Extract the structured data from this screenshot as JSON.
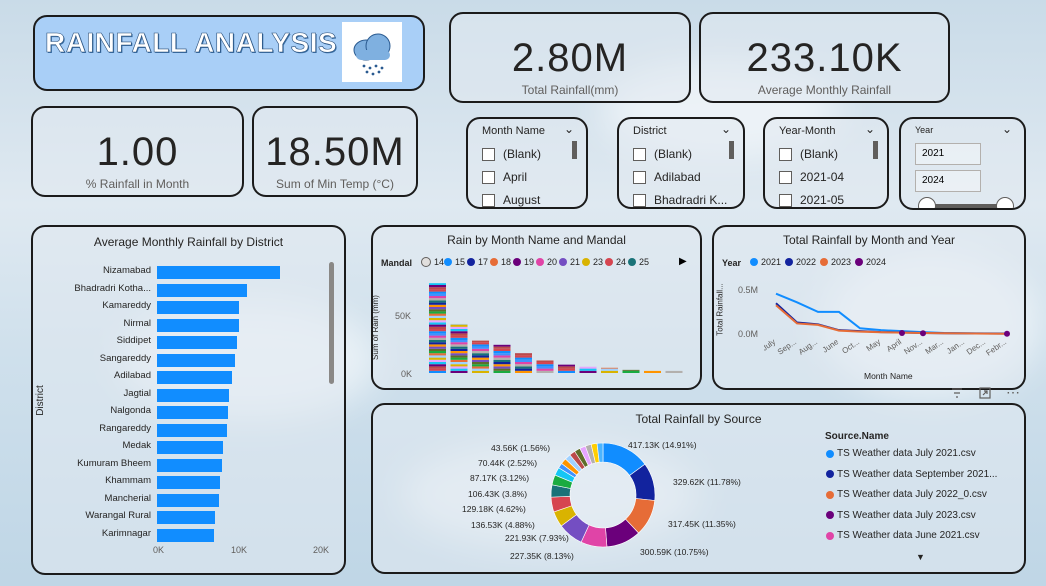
{
  "title": {
    "text": "RAINFALL ANALYSIS",
    "icon": "rain-cloud-icon"
  },
  "kpis": {
    "total_rainfall": {
      "value": "2.80M",
      "label": "Total Rainfall(mm)"
    },
    "avg_monthly": {
      "value": "233.10K",
      "label": "Average Monthly Rainfall"
    },
    "pct_rainfall": {
      "value": "1.00",
      "label": "% Rainfall in Month"
    },
    "min_temp": {
      "value": "18.50M",
      "label": "Sum of Min Temp (°C)"
    }
  },
  "slicers": {
    "month": {
      "title": "Month Name",
      "options": [
        "(Blank)",
        "April",
        "August"
      ]
    },
    "district": {
      "title": "District",
      "options": [
        "(Blank)",
        "Adilabad",
        "Bhadradri K..."
      ]
    },
    "year_month": {
      "title": "Year-Month",
      "options": [
        "(Blank)",
        "2021-04",
        "2021-05"
      ]
    },
    "year": {
      "title": "Year",
      "from": "2021",
      "to": "2024"
    }
  },
  "district_chart": {
    "title": "Average Monthly Rainfall by District",
    "ylabel": "District",
    "ticks": [
      "0K",
      "10K",
      "20K"
    ]
  },
  "mandal_chart": {
    "title": "Rain by Month Name and Mandal",
    "legend_title": "Mandal",
    "legend": [
      "14",
      "15",
      "17",
      "18",
      "19",
      "20",
      "21",
      "23",
      "24",
      "25"
    ],
    "ylabel": "Sum of Rain (mm)",
    "yticks": [
      "50K",
      "0K"
    ]
  },
  "year_chart": {
    "title": "Total Rainfall by Month and Year",
    "legend_title": "Year",
    "legend": [
      "2021",
      "2022",
      "2023",
      "2024"
    ],
    "ylabel": "Total Rainfall...",
    "xlabel": "Month Name",
    "yticks": [
      "0.5M",
      "0.0M"
    ],
    "xticks": [
      "July",
      "Sep...",
      "Aug...",
      "June",
      "Oct...",
      "May",
      "April",
      "Nov...",
      "Mar...",
      "Jan...",
      "Dec...",
      "Febr..."
    ]
  },
  "source_chart": {
    "title": "Total Rainfall by Source",
    "legend_title": "Source.Name",
    "legend": [
      "TS Weather data July 2021.csv",
      "TS Weather data September 2021...",
      "TS Weather data July 2022_0.csv",
      "TS Weather data July 2023.csv",
      "TS Weather data June 2021.csv"
    ],
    "labels": [
      "417.13K (14.91%)",
      "329.62K (11.78%)",
      "317.45K (11.35%)",
      "300.59K (10.75%)",
      "227.35K (8.13%)",
      "221.93K (7.93%)",
      "136.53K (4.88%)",
      "129.18K (4.62%)",
      "106.43K (3.8%)",
      "87.17K (3.12%)",
      "70.44K (2.52%)",
      "43.56K (1.56%)"
    ]
  },
  "colors": {
    "accent": "#118dff",
    "title_bg": "#a9cff7",
    "border": "#1b1b1b"
  },
  "chart_data": [
    {
      "type": "bar",
      "title": "Average Monthly Rainfall by District",
      "ylabel": "District",
      "categories": [
        "Nizamabad",
        "Bhadradri Kotha...",
        "Kamareddy",
        "Nirmal",
        "Siddipet",
        "Sangareddy",
        "Adilabad",
        "Jagtial",
        "Nalgonda",
        "Rangareddy",
        "Medak",
        "Kumuram Bheem",
        "Khammam",
        "Mancherial",
        "Warangal Rural",
        "Karimnagar"
      ],
      "values": [
        15000,
        11000,
        10000,
        10000,
        9700,
        9500,
        9200,
        8800,
        8600,
        8500,
        8000,
        7900,
        7700,
        7500,
        7100,
        6900
      ],
      "xlim": [
        0,
        20000
      ]
    },
    {
      "type": "line",
      "title": "Total Rainfall by Month and Year",
      "xlabel": "Month Name",
      "ylabel": "Total Rainfall...",
      "categories": [
        "July",
        "Sep...",
        "Aug...",
        "June",
        "Oct...",
        "May",
        "April",
        "Nov...",
        "Mar...",
        "Jan...",
        "Dec...",
        "Febr..."
      ],
      "series": [
        {
          "name": "2021",
          "color": "#118dff",
          "values": [
            420000,
            330000,
            230000,
            230000,
            60000,
            40000,
            30000,
            20000,
            10000,
            8000,
            6000,
            5000
          ]
        },
        {
          "name": "2022",
          "color": "#12239e",
          "values": [
            320000,
            120000,
            100000,
            40000,
            30000,
            20000,
            15000,
            10000,
            8000,
            6000,
            5000,
            4000
          ]
        },
        {
          "name": "2023",
          "color": "#e66c37",
          "values": [
            300000,
            110000,
            95000,
            35000,
            25000,
            18000,
            14000,
            10000,
            8000,
            6000,
            4000,
            3000
          ]
        },
        {
          "name": "2024",
          "color": "#6b007b",
          "values": [
            null,
            null,
            null,
            null,
            null,
            null,
            10000,
            8000,
            null,
            null,
            null,
            2000
          ]
        }
      ],
      "ylim": [
        0,
        500000
      ]
    },
    {
      "type": "pie",
      "title": "Total Rainfall by Source",
      "values": [
        417130,
        329620,
        317450,
        300590,
        227350,
        221930,
        136530,
        129180,
        106430,
        87170,
        70440,
        43560
      ],
      "percents": [
        14.91,
        11.78,
        11.35,
        10.75,
        8.13,
        7.93,
        4.88,
        4.62,
        3.8,
        3.12,
        2.52,
        1.56
      ],
      "colors": [
        "#118dff",
        "#12239e",
        "#e66c37",
        "#6b007b",
        "#e044a7",
        "#744ec2",
        "#d9b300",
        "#d64550",
        "#197278",
        "#1aab40",
        "#15c6f4",
        "#4092ff"
      ]
    },
    {
      "type": "bar",
      "title": "Rain by Month Name and Mandal",
      "ylabel": "Sum of Rain (mm)",
      "values": [
        86000,
        47000,
        31000,
        27000,
        19000,
        12000,
        8000,
        6000,
        5000,
        3000,
        2000,
        2000
      ],
      "ylim": [
        0,
        90000
      ]
    }
  ]
}
